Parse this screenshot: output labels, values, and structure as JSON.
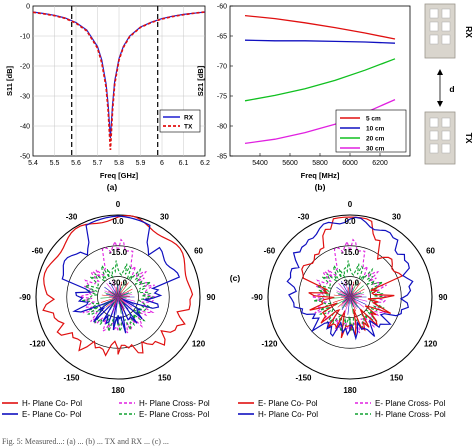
{
  "chart_data": [
    {
      "id": "a",
      "type": "line",
      "panel_label": "(a)",
      "xlabel": "Freq [GHz]",
      "ylabel": "S11 [dB]",
      "xlim": [
        5.4,
        6.2
      ],
      "ylim": [
        -50,
        0
      ],
      "xticks": [
        "5.4",
        "5.5",
        "5.6",
        "5.7",
        "5.8",
        "5.9",
        "6",
        "6.1",
        "6.2"
      ],
      "yticks": [
        "0",
        "-10",
        "-20",
        "-30",
        "-40",
        "-50"
      ],
      "grid": true,
      "legend_position": "bottom-right",
      "markers_x": [
        5.58,
        5.98
      ],
      "series": [
        {
          "name": "RX",
          "color": "#1f1fd0",
          "style": "solid",
          "x": [
            5.4,
            5.45,
            5.5,
            5.55,
            5.6,
            5.65,
            5.7,
            5.72,
            5.74,
            5.75,
            5.76,
            5.77,
            5.78,
            5.8,
            5.82,
            5.85,
            5.9,
            5.95,
            6.0,
            6.05,
            6.1,
            6.15,
            6.2
          ],
          "y": [
            -2.0,
            -2.5,
            -3.1,
            -4.0,
            -5.5,
            -8.0,
            -13.5,
            -18.0,
            -26.0,
            -33.0,
            -44.0,
            -33.0,
            -25.0,
            -17.5,
            -13.5,
            -10.0,
            -7.0,
            -5.4,
            -4.2,
            -3.4,
            -2.8,
            -2.4,
            -2.0
          ]
        },
        {
          "name": "TX",
          "color": "#e01010",
          "style": "dashed",
          "x": [
            5.4,
            5.45,
            5.5,
            5.55,
            5.6,
            5.65,
            5.7,
            5.72,
            5.74,
            5.75,
            5.76,
            5.77,
            5.78,
            5.8,
            5.82,
            5.85,
            5.9,
            5.95,
            6.0,
            6.05,
            6.1,
            6.15,
            6.2
          ],
          "y": [
            -2.1,
            -2.6,
            -3.2,
            -4.1,
            -5.7,
            -8.3,
            -14.0,
            -19.0,
            -27.0,
            -35.0,
            -48.0,
            -35.0,
            -26.0,
            -18.0,
            -13.8,
            -10.2,
            -7.1,
            -5.5,
            -4.3,
            -3.5,
            -2.9,
            -2.4,
            -2.0
          ]
        }
      ]
    },
    {
      "id": "b",
      "type": "line",
      "panel_label": "(b)",
      "xlabel": "Freq [MHz]",
      "ylabel": "S21 [dB]",
      "xlim": [
        5200,
        6400
      ],
      "ylim": [
        -85,
        -60
      ],
      "xticks": [
        "5400",
        "5600",
        "5800",
        "6000",
        "6200"
      ],
      "yticks": [
        "-60",
        "-65",
        "-70",
        "-75",
        "-80",
        "-85"
      ],
      "grid": false,
      "legend_position": "bottom-right",
      "series": [
        {
          "name": "5 cm",
          "color": "#e01010",
          "x": [
            5300,
            5500,
            5700,
            5900,
            6100,
            6300
          ],
          "y": [
            -61.6,
            -62.1,
            -62.8,
            -63.6,
            -64.5,
            -65.5
          ]
        },
        {
          "name": "10 cm",
          "color": "#1010c0",
          "x": [
            5300,
            5500,
            5700,
            5900,
            6100,
            6300
          ],
          "y": [
            -65.7,
            -65.8,
            -65.8,
            -65.9,
            -66.0,
            -66.2
          ]
        },
        {
          "name": "20 cm",
          "color": "#10c020",
          "x": [
            5300,
            5500,
            5700,
            5900,
            6100,
            6300
          ],
          "y": [
            -75.8,
            -74.9,
            -73.8,
            -72.4,
            -70.7,
            -68.8
          ]
        },
        {
          "name": "30 cm",
          "color": "#e020e0",
          "x": [
            5300,
            5500,
            5700,
            5900,
            6100,
            6300
          ],
          "y": [
            -82.9,
            -82.2,
            -81.1,
            -79.7,
            -77.8,
            -75.6
          ]
        }
      ]
    },
    {
      "id": "c-left",
      "type": "polar",
      "panel_label": "(c)",
      "radial_labels": [
        "0.0",
        "-15.0",
        "-30.0"
      ],
      "angle_labels": [
        "0",
        "30",
        "60",
        "90",
        "120",
        "150",
        "180",
        "-150",
        "-120",
        "-90",
        "-60",
        "-30"
      ],
      "series": [
        {
          "name": "H- Plane Co- Pol",
          "color": "#e01010",
          "style": "solid",
          "type": "co"
        },
        {
          "name": "E- Plane Co- Pol",
          "color": "#1010c0",
          "style": "solid",
          "type": "co"
        },
        {
          "name": "H- Plane Cross- Pol",
          "color": "#e020e0",
          "style": "dashed",
          "type": "cross"
        },
        {
          "name": "E- Plane Cross- Pol",
          "color": "#10a030",
          "style": "dashed",
          "type": "cross"
        }
      ]
    },
    {
      "id": "c-right",
      "type": "polar",
      "radial_labels": [
        "0.0",
        "-15.0",
        "-30.0"
      ],
      "angle_labels": [
        "0",
        "30",
        "60",
        "90",
        "120",
        "150",
        "180",
        "-150",
        "-120",
        "-90",
        "-60",
        "-30"
      ],
      "series": [
        {
          "name": "E- Plane Co- Pol",
          "color": "#e01010",
          "style": "solid",
          "type": "co"
        },
        {
          "name": "H- Plane Co- Pol",
          "color": "#1010c0",
          "style": "solid",
          "type": "co"
        },
        {
          "name": "E- Plane Cross- Pol",
          "color": "#e020e0",
          "style": "dashed",
          "type": "cross"
        },
        {
          "name": "H- Plane Cross- Pol",
          "color": "#10a030",
          "style": "dashed",
          "type": "cross"
        }
      ]
    }
  ],
  "setup": {
    "rx_label": "RX",
    "tx_label": "TX",
    "distance_label": "d"
  },
  "caption": "Fig. 5: Measured...: (a) ... (b) ... TX and RX ... (c) ..."
}
